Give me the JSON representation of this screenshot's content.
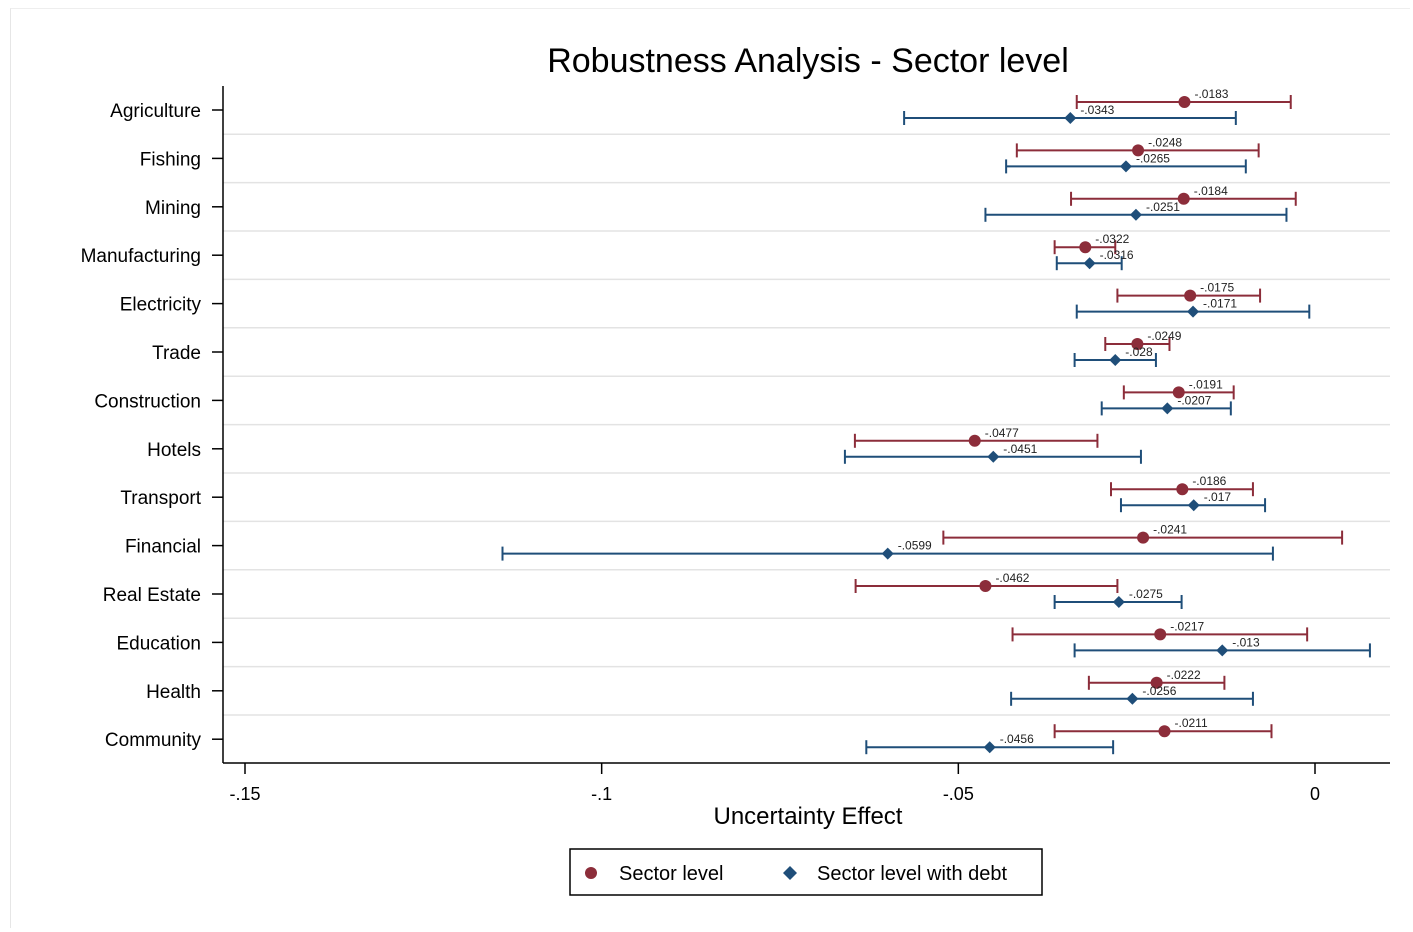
{
  "colors": {
    "sector": "#8c2d3a",
    "debt": "#1f4e79",
    "grid": "#e3e3e3",
    "axis": "#000000"
  },
  "chart_data": {
    "type": "scatter",
    "title": "Robustness Analysis - Sector level",
    "xlabel": "Uncertainty Effect",
    "ylabel": "",
    "xlim": [
      -0.153,
      0.011
    ],
    "xticks": [
      -0.15,
      -0.1,
      -0.05,
      0
    ],
    "xtick_labels": [
      "-.15",
      "-.1",
      "-.05",
      "0"
    ],
    "categories": [
      "Agriculture",
      "Fishing",
      "Mining",
      "Manufacturing",
      "Electricity",
      "Trade",
      "Construction",
      "Hotels",
      "Transport",
      "Financial",
      "Real Estate",
      "Education",
      "Health",
      "Community"
    ],
    "grid": true,
    "legend_position": "bottom",
    "series": [
      {
        "name": "Sector level",
        "marker": "circle",
        "values": [
          -0.0183,
          -0.0248,
          -0.0184,
          -0.0322,
          -0.0175,
          -0.0249,
          -0.0191,
          -0.0477,
          -0.0186,
          -0.0241,
          -0.0462,
          -0.0217,
          -0.0222,
          -0.0211
        ],
        "labels": [
          "-.0183",
          "-.0248",
          "-.0184",
          "-.0322",
          "-.0175",
          "-.0249",
          "-.0191",
          "-.0477",
          "-.0186",
          "-.0241",
          "-.0462",
          "-.0217",
          "-.0222",
          "-.0211"
        ],
        "ci_low": [
          -0.0334,
          -0.0418,
          -0.0342,
          -0.0365,
          -0.0277,
          -0.0294,
          -0.0268,
          -0.0645,
          -0.0286,
          -0.0521,
          -0.0644,
          -0.0424,
          -0.0317,
          -0.0365
        ],
        "ci_high": [
          -0.0034,
          -0.0079,
          -0.0027,
          -0.028,
          -0.0077,
          -0.0204,
          -0.0114,
          -0.0305,
          -0.0087,
          0.0038,
          -0.0277,
          -0.0011,
          -0.0127,
          -0.0061
        ]
      },
      {
        "name": "Sector level with debt",
        "marker": "diamond",
        "values": [
          -0.0343,
          -0.0265,
          -0.0251,
          -0.0316,
          -0.0171,
          -0.028,
          -0.0207,
          -0.0451,
          -0.017,
          -0.0599,
          -0.0275,
          -0.013,
          -0.0256,
          -0.0456
        ],
        "labels": [
          "-.0343",
          "-.0265",
          "-.0251",
          "-.0316",
          "-.0171",
          "-.028",
          "-.0207",
          "-.0451",
          "-.017",
          "-.0599",
          "-.0275",
          "-.013",
          "-.0256",
          "-.0456"
        ],
        "ci_low": [
          -0.0576,
          -0.0433,
          -0.0462,
          -0.0362,
          -0.0334,
          -0.0337,
          -0.0299,
          -0.0659,
          -0.0272,
          -0.1139,
          -0.0365,
          -0.0337,
          -0.0426,
          -0.0629
        ],
        "ci_high": [
          -0.0111,
          -0.0097,
          -0.004,
          -0.0271,
          -0.0008,
          -0.0223,
          -0.0118,
          -0.0244,
          -0.007,
          -0.0059,
          -0.0187,
          0.0077,
          -0.0087,
          -0.0283
        ]
      }
    ]
  }
}
